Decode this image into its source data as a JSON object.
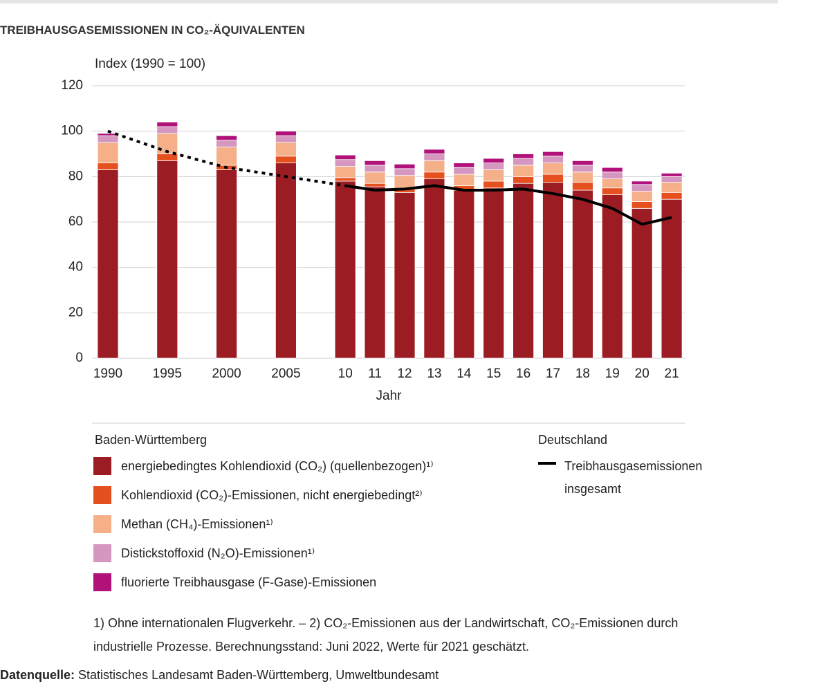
{
  "chart_data": {
    "type": "bar",
    "stacked": true,
    "title": "TREIBHAUSGASEMISSIONEN IN CO₂-ÄQUIVALENTEN",
    "y_label": "Index (1990 = 100)",
    "x_label": "Jahr",
    "categories": [
      "1990",
      "1995",
      "2000",
      "2005",
      "10",
      "11",
      "12",
      "13",
      "14",
      "15",
      "16",
      "17",
      "18",
      "19",
      "20",
      "21"
    ],
    "ylim": [
      0,
      120
    ],
    "yticks": [
      0,
      20,
      40,
      60,
      80,
      100,
      120
    ],
    "grid": true,
    "legend_titles": [
      "Baden-Württemberg",
      "Deutschland"
    ],
    "series": [
      {
        "name": "energiebedingtes Kohlendioxid (CO₂) (quellenbezogen)¹⁾",
        "color": "#9b1c22",
        "legend_group": 0,
        "values": [
          83,
          87,
          83,
          86,
          78,
          75.5,
          73,
          79,
          74,
          75,
          77,
          77.5,
          74,
          72,
          66,
          70
        ]
      },
      {
        "name": "Kohlendioxid (CO₂)-Emissionen, nicht energiebedingt²⁾",
        "color": "#e6501e",
        "legend_group": 0,
        "values": [
          3,
          3,
          2,
          3,
          1.5,
          1.5,
          1.5,
          3,
          2,
          3,
          3,
          3.5,
          3.5,
          3,
          3,
          3
        ]
      },
      {
        "name": "Methan (CH₄)-Emissionen¹⁾",
        "color": "#f5b08a",
        "legend_group": 0,
        "values": [
          9,
          9,
          8,
          6,
          5,
          5,
          6,
          5,
          5,
          5,
          5,
          5,
          4.5,
          4,
          4.5,
          4.5
        ]
      },
      {
        "name": "Distickstoffoxid (N₂O)-Emissionen¹⁾",
        "color": "#d597bf",
        "legend_group": 0,
        "values": [
          3,
          3,
          3,
          3,
          3,
          3,
          3,
          3,
          3,
          3,
          3,
          3,
          3,
          3,
          3,
          2.5
        ]
      },
      {
        "name": "fluorierte Treibhausgase (F-Gase)-Emissionen",
        "color": "#b0127a",
        "legend_group": 0,
        "values": [
          1,
          2,
          2,
          2,
          2,
          2,
          2,
          2,
          2,
          2,
          2,
          2,
          2,
          2,
          1.5,
          1.5
        ]
      },
      {
        "name": "Treibhausgasemissionen insgesamt",
        "color": "#000000",
        "type": "line",
        "legend_group": 1,
        "dash_end": 4,
        "values": [
          100,
          91,
          84,
          80,
          76,
          74,
          74.5,
          76,
          74,
          74,
          74.5,
          72.5,
          70,
          66,
          59,
          62
        ]
      }
    ]
  },
  "footnote": " 1) Ohne internationalen Flugverkehr.  – 2) CO₂-Emissionen aus der Landwirtschaft, CO₂-Emissionen durch industrielle Prozesse. Berechnungsstand: Juni 2022, Werte für 2021 geschätzt.",
  "source": {
    "label": "Datenquelle:",
    "text": " Statistisches Landesamt Baden-Württemberg, Umweltbundesamt"
  }
}
